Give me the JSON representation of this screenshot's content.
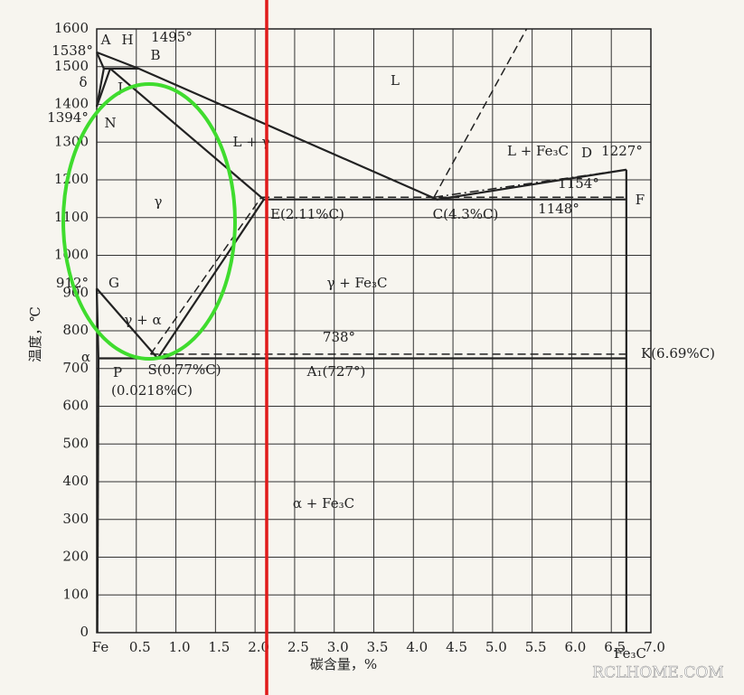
{
  "chart_data": {
    "type": "phase-diagram",
    "xlabel": "碳含量，%",
    "ylabel": "温度，℃",
    "xlim": [
      0,
      7
    ],
    "ylim": [
      0,
      1600
    ],
    "xticks": [
      {
        "value": 0,
        "label": "Fe"
      },
      0.5,
      {
        "value": 1,
        "label": "1.0"
      },
      1.5,
      {
        "value": 2,
        "label": "2.0"
      },
      2.5,
      {
        "value": 3,
        "label": "3.0"
      },
      3.5,
      {
        "value": 4,
        "label": "4.0"
      },
      4.5,
      {
        "value": 5,
        "label": "5.0"
      },
      5.5,
      {
        "value": 6,
        "label": "6.0"
      },
      6.5,
      {
        "value": 7,
        "label": "7.0"
      }
    ],
    "yticks": [
      0,
      100,
      200,
      300,
      400,
      500,
      600,
      700,
      800,
      900,
      1000,
      1100,
      1200,
      1300,
      1400,
      1500,
      1600
    ],
    "grid": true,
    "color": "#222222",
    "lines": [
      {
        "style": "solid",
        "x": [
          0,
          0.53,
          4.3,
          6.69
        ],
        "y": [
          1538,
          1495,
          1148,
          1227
        ]
      },
      {
        "style": "solid",
        "x": [
          0,
          0.09
        ],
        "y": [
          1538,
          1495
        ]
      },
      {
        "style": "solid",
        "x": [
          0.09,
          0.53
        ],
        "y": [
          1495,
          1495
        ]
      },
      {
        "style": "solid",
        "x": [
          0.09,
          0
        ],
        "y": [
          1495,
          1394
        ]
      },
      {
        "style": "solid",
        "x": [
          0.17,
          0
        ],
        "y": [
          1495,
          1394
        ]
      },
      {
        "style": "solid",
        "x": [
          0.17,
          2.11
        ],
        "y": [
          1495,
          1148
        ]
      },
      {
        "style": "solid",
        "x": [
          2.11,
          6.69
        ],
        "y": [
          1148,
          1148
        ]
      },
      {
        "style": "solid",
        "x": [
          0,
          0.77
        ],
        "y": [
          912,
          727
        ]
      },
      {
        "style": "solid",
        "x": [
          2.11,
          0.77
        ],
        "y": [
          1148,
          727
        ]
      },
      {
        "style": "solid",
        "x": [
          0,
          0.0218
        ],
        "y": [
          912,
          727
        ]
      },
      {
        "style": "solid",
        "x": [
          0.0218,
          6.69
        ],
        "y": [
          727,
          727
        ]
      },
      {
        "style": "solid",
        "x": [
          0.0218,
          0.008
        ],
        "y": [
          727,
          0
        ]
      },
      {
        "style": "solid",
        "x": [
          6.69,
          6.69
        ],
        "y": [
          1227,
          0
        ]
      },
      {
        "style": "dashed",
        "x": [
          4.26,
          5.43
        ],
        "y": [
          1154,
          1600
        ]
      },
      {
        "style": "dashed",
        "x": [
          0.68,
          2.08
        ],
        "y": [
          738,
          1154
        ]
      },
      {
        "style": "dashed",
        "x": [
          0.68,
          6.69
        ],
        "y": [
          738,
          738
        ]
      },
      {
        "style": "dashed",
        "x": [
          2.08,
          6.69
        ],
        "y": [
          1154,
          1154
        ]
      },
      {
        "style": "dashdot",
        "x": [
          4.26,
          6.69
        ],
        "y": [
          1154,
          1227
        ]
      }
    ],
    "annotations": [
      "A",
      "H",
      "1495°",
      "B",
      "1538°",
      "δ",
      "J",
      "1394°",
      "N",
      "L",
      "L + γ",
      "L + Fe₃C",
      "D",
      "1227°",
      "1154°",
      "F",
      "γ",
      "E(2.11%C)",
      "C(4.3%C)",
      "1148°",
      "912°",
      "G",
      "γ + Fe₃C",
      "γ + α",
      "738°",
      "α",
      "K(6.69%C)",
      "P",
      "S(0.77%C)",
      "A₁(727°)",
      "(0.0218%C)",
      "α + Fe₃C",
      "Fe₃C"
    ],
    "watermark": "RCLHOME.COM"
  }
}
